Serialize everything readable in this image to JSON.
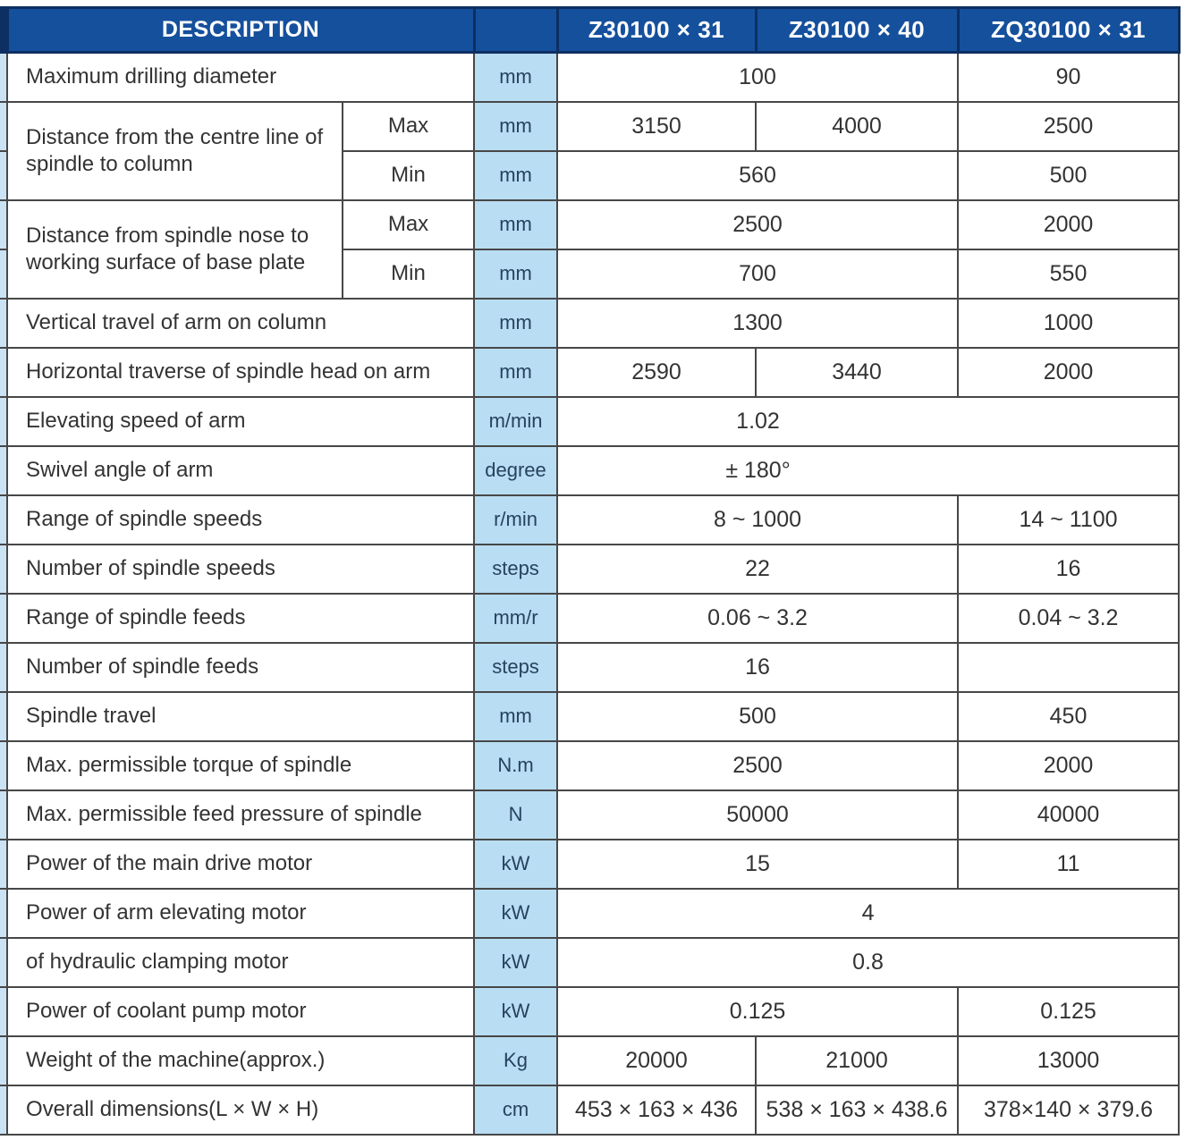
{
  "colors": {
    "header_bg": "#15509d",
    "header_divider": "#0d2f62",
    "header_text": "#ffffff",
    "unit_bg": "#b9ddf2",
    "stripe_bg": "#c9e3f5",
    "grid": "#474747",
    "text": "#333333",
    "unit_text": "#26425f"
  },
  "table": {
    "header": {
      "description": "DESCRIPTION",
      "unit_header": "",
      "models": [
        "Z30100 × 31",
        "Z30100 × 40",
        "ZQ30100 × 31"
      ]
    },
    "rows": [
      {
        "cells": [
          {
            "t": "Maximum drilling diameter",
            "type": "label",
            "colspan": 2
          },
          {
            "t": "mm",
            "type": "unit"
          },
          {
            "t": "100",
            "colspan": 2
          },
          {
            "t": "90"
          }
        ]
      },
      {
        "cells": [
          {
            "t": "Distance from the centre line of spindle to column",
            "type": "label",
            "rowspan": 2
          },
          {
            "t": "Max",
            "type": "sub"
          },
          {
            "t": "mm",
            "type": "unit"
          },
          {
            "t": "3150"
          },
          {
            "t": "4000"
          },
          {
            "t": "2500"
          }
        ]
      },
      {
        "cells": [
          {
            "t": "Min",
            "type": "sub"
          },
          {
            "t": "mm",
            "type": "unit"
          },
          {
            "t": "560",
            "colspan": 2
          },
          {
            "t": "500"
          }
        ]
      },
      {
        "cells": [
          {
            "t": "Distance from spindle nose to working surface of base plate",
            "type": "label",
            "rowspan": 2
          },
          {
            "t": "Max",
            "type": "sub"
          },
          {
            "t": "mm",
            "type": "unit"
          },
          {
            "t": "2500",
            "colspan": 2
          },
          {
            "t": "2000"
          }
        ]
      },
      {
        "cells": [
          {
            "t": "Min",
            "type": "sub"
          },
          {
            "t": "mm",
            "type": "unit"
          },
          {
            "t": "700",
            "colspan": 2
          },
          {
            "t": "550"
          }
        ]
      },
      {
        "cells": [
          {
            "t": "Vertical travel of arm on column",
            "type": "label",
            "colspan": 2
          },
          {
            "t": "mm",
            "type": "unit"
          },
          {
            "t": "1300",
            "colspan": 2
          },
          {
            "t": "1000"
          }
        ]
      },
      {
        "cells": [
          {
            "t": "Horizontal traverse of spindle head on arm",
            "type": "label",
            "colspan": 2
          },
          {
            "t": "mm",
            "type": "unit"
          },
          {
            "t": "2590"
          },
          {
            "t": "3440"
          },
          {
            "t": "2000"
          }
        ]
      },
      {
        "cells": [
          {
            "t": "Elevating speed of arm",
            "type": "label",
            "colspan": 2
          },
          {
            "t": "m/min",
            "type": "unit"
          },
          {
            "t": "1.02",
            "colspan": 3,
            "pad": true
          }
        ]
      },
      {
        "cells": [
          {
            "t": "Swivel angle of arm",
            "type": "label",
            "colspan": 2
          },
          {
            "t": "degree",
            "type": "unit"
          },
          {
            "t": "± 180°",
            "colspan": 3,
            "pad": true
          }
        ]
      },
      {
        "cells": [
          {
            "t": "Range of spindle speeds",
            "type": "label",
            "colspan": 2
          },
          {
            "t": "r/min",
            "type": "unit"
          },
          {
            "t": "8 ~ 1000",
            "colspan": 2
          },
          {
            "t": "14 ~ 1100"
          }
        ]
      },
      {
        "cells": [
          {
            "t": "Number of spindle speeds",
            "type": "label",
            "colspan": 2
          },
          {
            "t": "steps",
            "type": "unit"
          },
          {
            "t": "22",
            "colspan": 2
          },
          {
            "t": "16"
          }
        ]
      },
      {
        "cells": [
          {
            "t": "Range of spindle feeds",
            "type": "label",
            "colspan": 2
          },
          {
            "t": "mm/r",
            "type": "unit"
          },
          {
            "t": "0.06 ~ 3.2",
            "colspan": 2
          },
          {
            "t": "0.04 ~ 3.2"
          }
        ]
      },
      {
        "cells": [
          {
            "t": "Number of spindle feeds",
            "type": "label",
            "colspan": 2
          },
          {
            "t": "steps",
            "type": "unit"
          },
          {
            "t": "16",
            "colspan": 2
          },
          {
            "t": ""
          }
        ]
      },
      {
        "cells": [
          {
            "t": "Spindle travel",
            "type": "label",
            "colspan": 2
          },
          {
            "t": "mm",
            "type": "unit"
          },
          {
            "t": "500",
            "colspan": 2
          },
          {
            "t": "450"
          }
        ]
      },
      {
        "cells": [
          {
            "t": "Max. permissible torque of spindle",
            "type": "label",
            "colspan": 2
          },
          {
            "t": "N.m",
            "type": "unit"
          },
          {
            "t": "2500",
            "colspan": 2
          },
          {
            "t": "2000"
          }
        ]
      },
      {
        "cells": [
          {
            "t": "Max. permissible feed pressure of spindle",
            "type": "label",
            "colspan": 2
          },
          {
            "t": "N",
            "type": "unit"
          },
          {
            "t": "50000",
            "colspan": 2
          },
          {
            "t": "40000"
          }
        ]
      },
      {
        "cells": [
          {
            "t": "Power of the main drive motor",
            "type": "label",
            "colspan": 2
          },
          {
            "t": "kW",
            "type": "unit"
          },
          {
            "t": "15",
            "colspan": 2
          },
          {
            "t": "11"
          }
        ]
      },
      {
        "cells": [
          {
            "t": "Power of arm elevating  motor",
            "type": "label",
            "colspan": 2
          },
          {
            "t": "kW",
            "type": "unit"
          },
          {
            "t": "4",
            "colspan": 3
          }
        ]
      },
      {
        "cells": [
          {
            "t": "of hydraulic clamping motor",
            "type": "label",
            "colspan": 2
          },
          {
            "t": "kW",
            "type": "unit"
          },
          {
            "t": "0.8",
            "colspan": 3
          }
        ]
      },
      {
        "cells": [
          {
            "t": "Power of coolant pump motor",
            "type": "label",
            "colspan": 2
          },
          {
            "t": "kW",
            "type": "unit"
          },
          {
            "t": "0.125",
            "colspan": 2
          },
          {
            "t": "0.125"
          }
        ]
      },
      {
        "cells": [
          {
            "t": "Weight of the machine(approx.)",
            "type": "label",
            "colspan": 2
          },
          {
            "t": "Kg",
            "type": "unit"
          },
          {
            "t": "20000"
          },
          {
            "t": "21000"
          },
          {
            "t": "13000"
          }
        ]
      },
      {
        "cells": [
          {
            "t": "Overall dimensions(L × W × H)",
            "type": "label",
            "colspan": 2
          },
          {
            "t": "cm",
            "type": "unit"
          },
          {
            "t": "453 × 163 × 436"
          },
          {
            "t": "538 × 163 × 438.6"
          },
          {
            "t": "378×140 × 379.6"
          }
        ]
      }
    ]
  }
}
